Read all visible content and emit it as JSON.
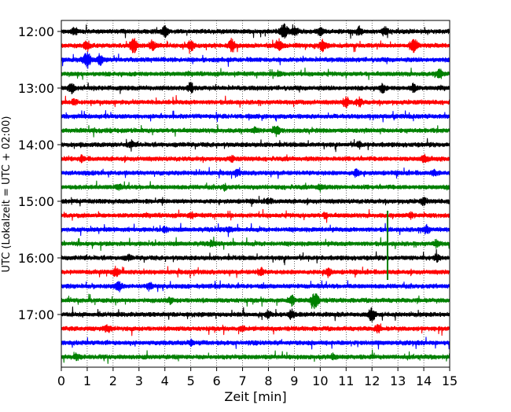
{
  "chart_data": {
    "type": "line",
    "xlabel": "Zeit  [min]",
    "ylabel": "UTC (Lokalzeit = UTC + 02:00)",
    "xlim": [
      0,
      15
    ],
    "x_ticks": [
      0,
      1,
      2,
      3,
      4,
      5,
      6,
      7,
      8,
      9,
      10,
      11,
      12,
      13,
      14,
      15
    ],
    "x_tick_labels": [
      "0",
      "1",
      "2",
      "3",
      "4",
      "5",
      "6",
      "7",
      "8",
      "9",
      "10",
      "11",
      "12",
      "13",
      "14",
      "15"
    ],
    "grid": "vertical dotted at each minute",
    "y_ticks": [
      "12:00",
      "13:00",
      "14:00",
      "15:00",
      "16:00",
      "17:00"
    ],
    "trace_interval_minutes": 15,
    "color_cycle": [
      "#000000",
      "#ff0000",
      "#0000ff",
      "#008000"
    ],
    "series": [
      {
        "start": "12:00",
        "color": "#000000",
        "events": [
          [
            0.5,
            0.5
          ],
          [
            4.0,
            0.7
          ],
          [
            8.6,
            1.0
          ],
          [
            9.0,
            0.6
          ],
          [
            10.0,
            0.5
          ],
          [
            11.5,
            0.5
          ],
          [
            12.5,
            0.5
          ]
        ]
      },
      {
        "start": "12:15",
        "color": "#ff0000",
        "events": [
          [
            1.0,
            0.6
          ],
          [
            2.8,
            0.9
          ],
          [
            3.5,
            0.6
          ],
          [
            5.0,
            0.6
          ],
          [
            6.6,
            0.8
          ],
          [
            8.4,
            0.8
          ],
          [
            10.1,
            0.7
          ],
          [
            13.6,
            0.9
          ]
        ]
      },
      {
        "start": "12:30",
        "color": "#0000ff",
        "events": [
          [
            1.0,
            1.0
          ],
          [
            1.5,
            0.6
          ]
        ]
      },
      {
        "start": "12:45",
        "color": "#008000",
        "events": [
          [
            14.6,
            0.6
          ],
          [
            8.4,
            0.3
          ]
        ]
      },
      {
        "start": "13:00",
        "color": "#000000",
        "events": [
          [
            0.4,
            0.6
          ],
          [
            5.0,
            0.6
          ],
          [
            12.4,
            0.5
          ],
          [
            13.6,
            0.5
          ]
        ]
      },
      {
        "start": "13:15",
        "color": "#ff0000",
        "events": [
          [
            11.0,
            0.6
          ],
          [
            11.5,
            0.5
          ],
          [
            0.5,
            0.3
          ]
        ]
      },
      {
        "start": "13:30",
        "color": "#0000ff",
        "events": []
      },
      {
        "start": "13:45",
        "color": "#008000",
        "events": [
          [
            8.3,
            0.6
          ],
          [
            7.5,
            0.3
          ]
        ]
      },
      {
        "start": "14:00",
        "color": "#000000",
        "events": [
          [
            2.7,
            0.4
          ],
          [
            11.5,
            0.3
          ]
        ]
      },
      {
        "start": "14:15",
        "color": "#ff0000",
        "events": [
          [
            0.8,
            0.3
          ],
          [
            6.6,
            0.3
          ],
          [
            14.0,
            0.4
          ]
        ]
      },
      {
        "start": "14:30",
        "color": "#0000ff",
        "events": [
          [
            11.4,
            0.4
          ],
          [
            14.4,
            0.3
          ],
          [
            6.8,
            0.3
          ]
        ]
      },
      {
        "start": "14:45",
        "color": "#008000",
        "events": [
          [
            10.0,
            0.4
          ],
          [
            2.2,
            0.3
          ],
          [
            6.3,
            0.3
          ]
        ]
      },
      {
        "start": "15:00",
        "color": "#000000",
        "events": [
          [
            8.0,
            0.3
          ],
          [
            14.0,
            0.4
          ]
        ]
      },
      {
        "start": "15:15",
        "color": "#ff0000",
        "events": [
          [
            5.0,
            0.3
          ],
          [
            10.2,
            0.3
          ],
          [
            13.5,
            0.3
          ]
        ]
      },
      {
        "start": "15:30",
        "color": "#0000ff",
        "events": [
          [
            4.0,
            0.3
          ],
          [
            6.5,
            0.3
          ],
          [
            14.1,
            0.5
          ]
        ]
      },
      {
        "start": "15:45",
        "color": "#008000",
        "events": [
          [
            14.5,
            0.4
          ],
          [
            5.8,
            0.3
          ]
        ]
      },
      {
        "start": "16:00",
        "color": "#000000",
        "events": [
          [
            2.6,
            0.3
          ],
          [
            14.5,
            0.4
          ]
        ]
      },
      {
        "start": "16:15",
        "color": "#ff0000",
        "events": [
          [
            2.1,
            0.6
          ],
          [
            7.7,
            0.5
          ],
          [
            10.3,
            0.5
          ]
        ]
      },
      {
        "start": "16:30",
        "color": "#0000ff",
        "events": [
          [
            2.2,
            0.6
          ],
          [
            3.4,
            0.4
          ]
        ]
      },
      {
        "start": "16:45",
        "color": "#008000",
        "events": [
          [
            8.9,
            0.6
          ],
          [
            9.8,
            1.0
          ],
          [
            4.2,
            0.3
          ]
        ]
      },
      {
        "start": "17:00",
        "color": "#000000",
        "events": [
          [
            8.0,
            0.4
          ],
          [
            8.9,
            0.5
          ],
          [
            12.0,
            0.8
          ]
        ]
      },
      {
        "start": "17:15",
        "color": "#ff0000",
        "events": [
          [
            1.8,
            0.5
          ],
          [
            12.2,
            0.4
          ],
          [
            7.0,
            0.3
          ]
        ]
      },
      {
        "start": "17:30",
        "color": "#0000ff",
        "events": [
          [
            5.0,
            0.3
          ]
        ]
      },
      {
        "start": "17:45",
        "color": "#008000",
        "events": [
          [
            0.6,
            0.3
          ],
          [
            10.5,
            0.3
          ]
        ]
      }
    ],
    "spike": {
      "x": 12.6,
      "from_trace": 13,
      "to_trace": 17,
      "color": "#008000"
    }
  }
}
